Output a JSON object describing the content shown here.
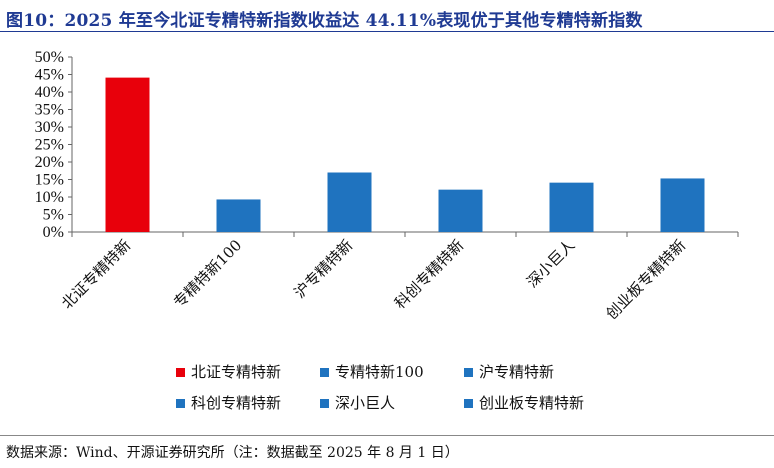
{
  "title": "图10：2025 年至今北证专精特新指数收益达 44.11%表现优于其他专精特新指数",
  "source": "数据来源：Wind、开源证券研究所（注：数据截至 2025 年 8 月 1 日）",
  "colors": {
    "title": "#1f3a93",
    "highlight": "#e8000b",
    "series": "#1f73bf"
  },
  "chart_data": {
    "type": "bar",
    "categories": [
      "北证专精特新",
      "专精特新100",
      "沪专精特新",
      "科创专精特新",
      "深小巨人",
      "创业板专精特新"
    ],
    "values": [
      44.11,
      9.3,
      17.0,
      12.1,
      14.1,
      15.3
    ],
    "bar_colors": [
      "#e8000b",
      "#1f73bf",
      "#1f73bf",
      "#1f73bf",
      "#1f73bf",
      "#1f73bf"
    ],
    "ylim": [
      0,
      50
    ],
    "yticks": [
      "0%",
      "5%",
      "10%",
      "15%",
      "20%",
      "25%",
      "30%",
      "35%",
      "40%",
      "45%",
      "50%"
    ],
    "legend": [
      "北证专精特新",
      "专精特新100",
      "沪专精特新",
      "科创专精特新",
      "深小巨人",
      "创业板专精特新"
    ],
    "legend_position": "bottom",
    "grid": false,
    "xlabel": "",
    "ylabel": ""
  }
}
